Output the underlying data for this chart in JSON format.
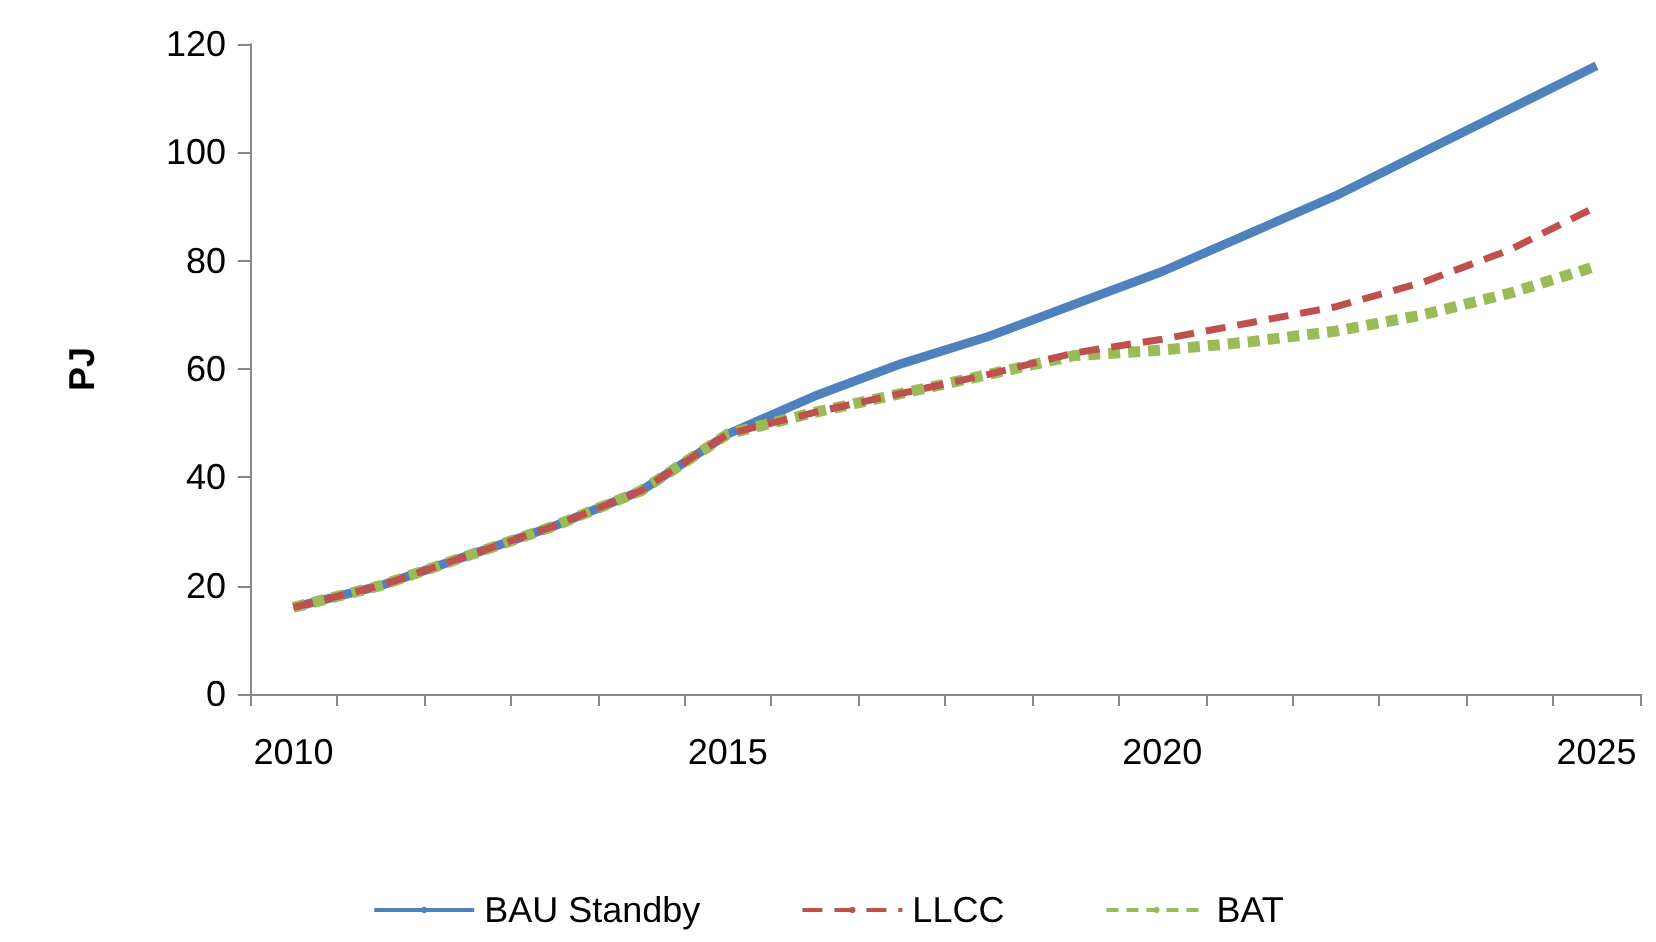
{
  "chart_data": {
    "type": "line",
    "ylabel": "PJ",
    "categories": [
      "2010",
      null,
      null,
      null,
      null,
      "2015",
      null,
      null,
      null,
      null,
      "2020",
      null,
      null,
      null,
      null,
      "2025"
    ],
    "series": [
      {
        "name": "BAU Standby",
        "color": "#4f81bd",
        "line_style": "solid",
        "values": [
          16,
          20,
          25.5,
          31,
          37.5,
          48,
          55,
          61,
          66,
          72,
          78,
          85,
          92,
          100,
          108,
          116
        ]
      },
      {
        "name": "LLCC",
        "color": "#c0504d",
        "line_style": "dashed",
        "values": [
          16,
          20,
          25.5,
          31,
          37.5,
          48,
          52,
          55.5,
          59,
          63,
          65.5,
          68.5,
          71.5,
          76,
          82,
          90
        ]
      },
      {
        "name": "BAT",
        "color": "#9bbb59",
        "line_style": "dotted",
        "values": [
          16,
          20,
          25.5,
          31,
          37.5,
          48,
          52,
          55.5,
          59,
          62.5,
          63.5,
          65,
          67,
          70,
          74,
          79
        ]
      }
    ],
    "ylim": [
      0,
      120
    ],
    "yticks": [
      0,
      20,
      40,
      60,
      80,
      100,
      120
    ],
    "grid": false,
    "legend": "bottom",
    "marker": "none"
  }
}
